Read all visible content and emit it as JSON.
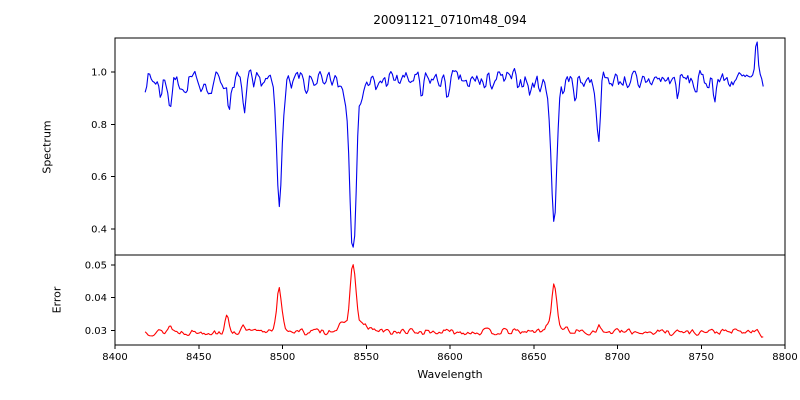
{
  "chart_data": {
    "type": "line",
    "title": "20091121_0710m48_094",
    "xlabel": "Wavelength",
    "x_range": [
      8418,
      8787
    ],
    "x_axis_limits": [
      8400,
      8800
    ],
    "x_ticks": [
      8400,
      8450,
      8500,
      8550,
      8600,
      8650,
      8700,
      8750,
      8800
    ],
    "grid": false,
    "legend": "none",
    "subplots": [
      {
        "ylabel": "Spectrum",
        "ylim": [
          0.3,
          1.13
        ],
        "y_ticks": [
          0.4,
          0.6,
          0.8,
          1.0
        ],
        "y_tick_labels": [
          "0.4",
          "0.6",
          "0.8",
          "1.0"
        ],
        "color": "#0000ee",
        "description": "Noisy stellar spectrum, continuum near 0.97 with Ca II triplet absorption lines",
        "model": {
          "base": 0.97,
          "noise": 0.05,
          "seed": 7,
          "step": 0.9,
          "clip_min": 0.33,
          "dips": [
            [
              8427,
              0.05,
              1.0
            ],
            [
              8433,
              0.1,
              1.0
            ],
            [
              8442,
              0.06,
              1.0
            ],
            [
              8450,
              0.05,
              0.9
            ],
            [
              8457,
              0.06,
              0.9
            ],
            [
              8468,
              0.1,
              1.1
            ],
            [
              8477,
              0.12,
              1.1
            ],
            [
              8483,
              0.05,
              0.9
            ],
            [
              8498.0,
              0.45,
              1.4
            ],
            [
              8498.0,
              0.04,
              4.0
            ],
            [
              8514,
              0.07,
              1.0
            ],
            [
              8525,
              0.05,
              0.9
            ],
            [
              8542.1,
              0.58,
              1.9
            ],
            [
              8542.1,
              0.05,
              6.0
            ],
            [
              8556,
              0.05,
              0.9
            ],
            [
              8583,
              0.07,
              1.0
            ],
            [
              8598,
              0.06,
              0.9
            ],
            [
              8611,
              0.05,
              0.9
            ],
            [
              8621,
              0.04,
              0.9
            ],
            [
              8648,
              0.06,
              0.9
            ],
            [
              8662.1,
              0.5,
              1.6
            ],
            [
              8662.1,
              0.04,
              5.0
            ],
            [
              8675,
              0.05,
              0.9
            ],
            [
              8688.5,
              0.22,
              1.1
            ],
            [
              8713,
              0.06,
              0.9
            ],
            [
              8736,
              0.05,
              0.9
            ],
            [
              8747,
              0.04,
              0.9
            ],
            [
              8758,
              0.05,
              0.9
            ]
          ],
          "bumps": [
            [
              8783,
              0.13,
              0.7
            ]
          ]
        }
      },
      {
        "ylabel": "Error",
        "ylim": [
          0.0255,
          0.053
        ],
        "y_ticks": [
          0.03,
          0.04,
          0.05
        ],
        "y_tick_labels": [
          "0.03",
          "0.04",
          "0.05"
        ],
        "color": "#ff0000",
        "description": "Error spectrum, baseline near 0.0295 with peaks at the absorption line positions",
        "model": {
          "base": 0.0295,
          "noise": 0.0013,
          "seed": 13,
          "step": 0.9,
          "clip_min": 0.026,
          "dips": [
            [
              8786.5,
              0.0012,
              1.0
            ]
          ],
          "bumps": [
            [
              8433,
              0.0018,
              1.3
            ],
            [
              8467,
              0.0042,
              1.3
            ],
            [
              8477,
              0.0015,
              1.0
            ],
            [
              8498.0,
              0.011,
              1.3
            ],
            [
              8498.0,
              0.002,
              4.0
            ],
            [
              8542.1,
              0.018,
              1.6
            ],
            [
              8542.1,
              0.003,
              7.0
            ],
            [
              8662.1,
              0.0125,
              1.5
            ],
            [
              8662.1,
              0.002,
              5.0
            ],
            [
              8688.5,
              0.002,
              1.1
            ]
          ]
        }
      }
    ]
  }
}
